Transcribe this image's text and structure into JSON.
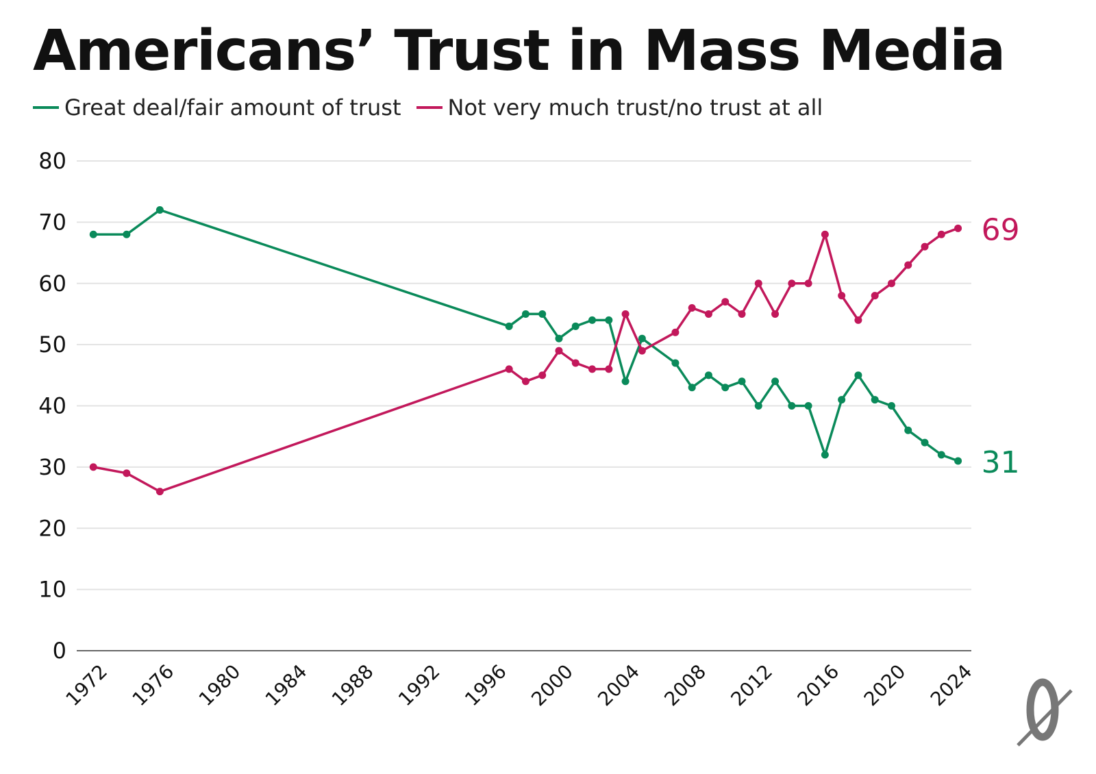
{
  "chart_data": {
    "type": "line",
    "title": "Americans’ Trust in Mass Media",
    "ylim": [
      0,
      80
    ],
    "y_ticks": [
      0,
      10,
      20,
      30,
      40,
      50,
      60,
      70,
      80
    ],
    "x_ticks": [
      1972,
      1976,
      1980,
      1984,
      1988,
      1992,
      1996,
      2000,
      2004,
      2008,
      2012,
      2016,
      2020,
      2024
    ],
    "xlim": [
      1971,
      2024.8
    ],
    "grid": true,
    "legend_position": "top-left",
    "series": [
      {
        "name": "Great deal/fair amount of trust",
        "color": "#0a8a5a",
        "end_label": "31",
        "points": [
          {
            "x": 1972,
            "y": 68
          },
          {
            "x": 1974,
            "y": 68
          },
          {
            "x": 1976,
            "y": 72
          },
          {
            "x": 1997,
            "y": 53
          },
          {
            "x": 1998,
            "y": 55
          },
          {
            "x": 1999,
            "y": 55
          },
          {
            "x": 2000,
            "y": 51
          },
          {
            "x": 2001,
            "y": 53
          },
          {
            "x": 2002,
            "y": 54
          },
          {
            "x": 2003,
            "y": 54
          },
          {
            "x": 2004,
            "y": 44
          },
          {
            "x": 2005,
            "y": 51
          },
          {
            "x": 2007,
            "y": 47
          },
          {
            "x": 2008,
            "y": 43
          },
          {
            "x": 2009,
            "y": 45
          },
          {
            "x": 2010,
            "y": 43
          },
          {
            "x": 2011,
            "y": 44
          },
          {
            "x": 2012,
            "y": 40
          },
          {
            "x": 2013,
            "y": 44
          },
          {
            "x": 2014,
            "y": 40
          },
          {
            "x": 2015,
            "y": 40
          },
          {
            "x": 2016,
            "y": 32
          },
          {
            "x": 2017,
            "y": 41
          },
          {
            "x": 2018,
            "y": 45
          },
          {
            "x": 2019,
            "y": 41
          },
          {
            "x": 2020,
            "y": 40
          },
          {
            "x": 2021,
            "y": 36
          },
          {
            "x": 2022,
            "y": 34
          },
          {
            "x": 2023,
            "y": 32
          },
          {
            "x": 2024,
            "y": 31
          }
        ]
      },
      {
        "name": "Not very much trust/no trust at all",
        "color": "#c2185b",
        "end_label": "69",
        "points": [
          {
            "x": 1972,
            "y": 30
          },
          {
            "x": 1974,
            "y": 29
          },
          {
            "x": 1976,
            "y": 26
          },
          {
            "x": 1997,
            "y": 46
          },
          {
            "x": 1998,
            "y": 44
          },
          {
            "x": 1999,
            "y": 45
          },
          {
            "x": 2000,
            "y": 49
          },
          {
            "x": 2001,
            "y": 47
          },
          {
            "x": 2002,
            "y": 46
          },
          {
            "x": 2003,
            "y": 46
          },
          {
            "x": 2004,
            "y": 55
          },
          {
            "x": 2005,
            "y": 49
          },
          {
            "x": 2007,
            "y": 52
          },
          {
            "x": 2008,
            "y": 56
          },
          {
            "x": 2009,
            "y": 55
          },
          {
            "x": 2010,
            "y": 57
          },
          {
            "x": 2011,
            "y": 55
          },
          {
            "x": 2012,
            "y": 60
          },
          {
            "x": 2013,
            "y": 55
          },
          {
            "x": 2014,
            "y": 60
          },
          {
            "x": 2015,
            "y": 60
          },
          {
            "x": 2016,
            "y": 68
          },
          {
            "x": 2017,
            "y": 58
          },
          {
            "x": 2018,
            "y": 54
          },
          {
            "x": 2019,
            "y": 58
          },
          {
            "x": 2020,
            "y": 60
          },
          {
            "x": 2021,
            "y": 63
          },
          {
            "x": 2022,
            "y": 66
          },
          {
            "x": 2023,
            "y": 68
          },
          {
            "x": 2024,
            "y": 69
          }
        ]
      }
    ]
  },
  "legend": [
    {
      "label": "Great deal/fair amount of trust",
      "color": "#0a8a5a"
    },
    {
      "label": "Not very much trust/no trust at all",
      "color": "#c2185b"
    }
  ],
  "logo": {
    "icon": "slashed-zero-logo",
    "color": "#777777"
  }
}
